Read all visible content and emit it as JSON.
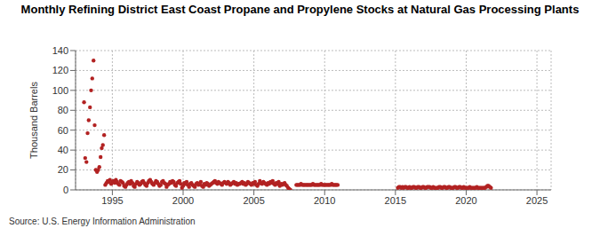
{
  "chart_data": {
    "type": "scatter",
    "title": "Monthly Refining District East Coast Propane and Propylene Stocks at Natural Gas Processing Plants",
    "y_label": "Thousand Barrels",
    "source": "Source: U.S. Energy Information Administration",
    "color": "#b22222",
    "marker": "circle",
    "grid": true,
    "xlim": [
      1992.4,
      2026
    ],
    "xticks": [
      1995,
      2000,
      2005,
      2010,
      2015,
      2020,
      2025
    ],
    "ylim": [
      0,
      140
    ],
    "yticks": [
      0,
      20,
      40,
      60,
      80,
      100,
      120,
      140
    ],
    "x": [
      1993,
      1993.08,
      1993.17,
      1993.25,
      1993.33,
      1993.42,
      1993.5,
      1993.58,
      1993.67,
      1993.75,
      1993.83,
      1993.92,
      1994,
      1994.08,
      1994.17,
      1994.25,
      1994.33,
      1994.42,
      1994.5,
      1994.58,
      1994.67,
      1994.75,
      1994.83,
      1994.92,
      1995,
      1995.08,
      1995.17,
      1995.25,
      1995.33,
      1995.42,
      1995.5,
      1995.58,
      1995.67,
      1995.75,
      1995.83,
      1995.92,
      1996,
      1996.08,
      1996.17,
      1996.25,
      1996.33,
      1996.42,
      1996.5,
      1996.58,
      1996.67,
      1996.75,
      1996.83,
      1996.92,
      1997,
      1997.08,
      1997.17,
      1997.25,
      1997.33,
      1997.42,
      1997.5,
      1997.58,
      1997.67,
      1997.75,
      1997.83,
      1997.92,
      1998,
      1998.08,
      1998.17,
      1998.25,
      1998.33,
      1998.42,
      1998.5,
      1998.58,
      1998.67,
      1998.75,
      1998.83,
      1998.92,
      1999,
      1999.08,
      1999.17,
      1999.25,
      1999.33,
      1999.42,
      1999.5,
      1999.58,
      1999.67,
      1999.75,
      1999.83,
      1999.92,
      2000,
      2000.08,
      2000.17,
      2000.25,
      2000.33,
      2000.42,
      2000.5,
      2000.58,
      2000.67,
      2000.75,
      2000.83,
      2000.92,
      2001,
      2001.08,
      2001.17,
      2001.25,
      2001.33,
      2001.42,
      2001.5,
      2001.58,
      2001.67,
      2001.75,
      2001.83,
      2001.92,
      2002,
      2002.08,
      2002.17,
      2002.25,
      2002.33,
      2002.42,
      2002.5,
      2002.58,
      2002.67,
      2002.75,
      2002.83,
      2002.92,
      2003,
      2003.08,
      2003.17,
      2003.25,
      2003.33,
      2003.42,
      2003.5,
      2003.58,
      2003.67,
      2003.75,
      2003.83,
      2003.92,
      2004,
      2004.08,
      2004.17,
      2004.25,
      2004.33,
      2004.42,
      2004.5,
      2004.58,
      2004.67,
      2004.75,
      2004.83,
      2004.92,
      2005,
      2005.08,
      2005.17,
      2005.25,
      2005.33,
      2005.42,
      2005.5,
      2005.58,
      2005.67,
      2005.75,
      2005.83,
      2005.92,
      2006,
      2006.08,
      2006.17,
      2006.25,
      2006.33,
      2006.42,
      2006.5,
      2006.58,
      2006.67,
      2006.75,
      2006.83,
      2006.92,
      2007,
      2007.08,
      2007.17,
      2007.25,
      2007.33,
      2007.42,
      2007.5,
      2007.58,
      2008,
      2008.08,
      2008.17,
      2008.25,
      2008.33,
      2008.42,
      2008.5,
      2008.58,
      2008.67,
      2008.75,
      2008.83,
      2008.92,
      2009,
      2009.08,
      2009.17,
      2009.25,
      2009.33,
      2009.42,
      2009.5,
      2009.58,
      2009.67,
      2009.75,
      2009.83,
      2009.92,
      2010,
      2010.08,
      2010.17,
      2010.25,
      2010.33,
      2010.42,
      2010.5,
      2010.58,
      2010.67,
      2010.75,
      2010.83,
      2010.92,
      2015.17,
      2015.25,
      2015.33,
      2015.42,
      2015.5,
      2015.58,
      2015.67,
      2015.75,
      2015.83,
      2015.92,
      2016,
      2016.08,
      2016.17,
      2016.25,
      2016.33,
      2016.42,
      2016.5,
      2016.58,
      2016.67,
      2016.75,
      2016.83,
      2016.92,
      2017,
      2017.08,
      2017.17,
      2017.25,
      2017.33,
      2017.42,
      2017.5,
      2017.58,
      2017.67,
      2017.75,
      2017.83,
      2017.92,
      2018,
      2018.08,
      2018.17,
      2018.25,
      2018.33,
      2018.42,
      2018.5,
      2018.58,
      2018.67,
      2018.75,
      2018.83,
      2018.92,
      2019,
      2019.08,
      2019.17,
      2019.25,
      2019.33,
      2019.42,
      2019.5,
      2019.58,
      2019.67,
      2019.75,
      2019.83,
      2019.92,
      2020,
      2020.08,
      2020.17,
      2020.25,
      2020.33,
      2020.42,
      2020.5,
      2020.58,
      2020.67,
      2020.75,
      2020.83,
      2020.92,
      2021,
      2021.08,
      2021.17,
      2021.25,
      2021.33,
      2021.42,
      2021.5,
      2021.58,
      2021.67,
      2021.75
    ],
    "values": [
      88,
      32,
      28,
      57,
      70,
      83,
      100,
      112,
      130,
      65,
      20,
      18,
      20,
      23,
      33,
      42,
      45,
      55,
      5,
      7,
      9,
      8,
      10,
      6,
      8,
      9,
      7,
      10,
      8,
      6,
      5,
      9,
      8,
      7,
      4,
      3,
      5,
      7,
      8,
      6,
      9,
      7,
      4,
      3,
      6,
      8,
      7,
      5,
      6,
      8,
      9,
      7,
      5,
      4,
      7,
      9,
      10,
      8,
      6,
      5,
      7,
      9,
      8,
      6,
      4,
      5,
      8,
      9,
      7,
      6,
      3,
      5,
      6,
      8,
      7,
      9,
      8,
      5,
      4,
      7,
      8,
      9,
      6,
      2,
      4,
      7,
      6,
      8,
      5,
      3,
      6,
      7,
      5,
      4,
      3,
      6,
      7,
      5,
      6,
      8,
      4,
      3,
      6,
      5,
      7,
      6,
      4,
      5,
      6,
      7,
      8,
      9,
      7,
      6,
      8,
      7,
      6,
      5,
      7,
      8,
      7,
      6,
      8,
      7,
      5,
      6,
      7,
      8,
      6,
      7,
      5,
      6,
      6,
      7,
      8,
      6,
      7,
      5,
      6,
      8,
      7,
      6,
      5,
      7,
      6,
      8,
      5,
      4,
      6,
      9,
      7,
      6,
      8,
      7,
      6,
      5,
      7,
      6,
      8,
      7,
      9,
      6,
      5,
      7,
      6,
      8,
      4,
      6,
      5,
      6,
      7,
      5,
      4,
      2,
      1,
      0,
      5,
      5,
      5,
      5,
      6,
      5,
      5,
      5,
      5,
      5,
      5,
      5,
      5,
      5,
      6,
      5,
      5,
      5,
      5,
      5,
      5,
      6,
      5,
      5,
      5,
      5,
      5,
      5,
      5,
      5,
      6,
      5,
      5,
      5,
      5,
      5,
      2,
      3,
      3,
      2,
      3,
      2,
      3,
      3,
      2,
      2,
      3,
      2,
      2,
      3,
      3,
      2,
      2,
      3,
      3,
      2,
      2,
      3,
      3,
      2,
      2,
      3,
      3,
      3,
      2,
      2,
      3,
      2,
      2,
      2,
      2,
      3,
      3,
      2,
      2,
      3,
      3,
      2,
      2,
      3,
      3,
      2,
      2,
      2,
      3,
      3,
      2,
      2,
      3,
      3,
      2,
      2,
      3,
      2,
      2,
      2,
      2,
      3,
      2,
      2,
      2,
      2,
      2,
      3,
      2,
      2,
      2,
      2,
      2,
      2,
      2,
      3,
      4,
      4,
      3,
      2
    ]
  }
}
